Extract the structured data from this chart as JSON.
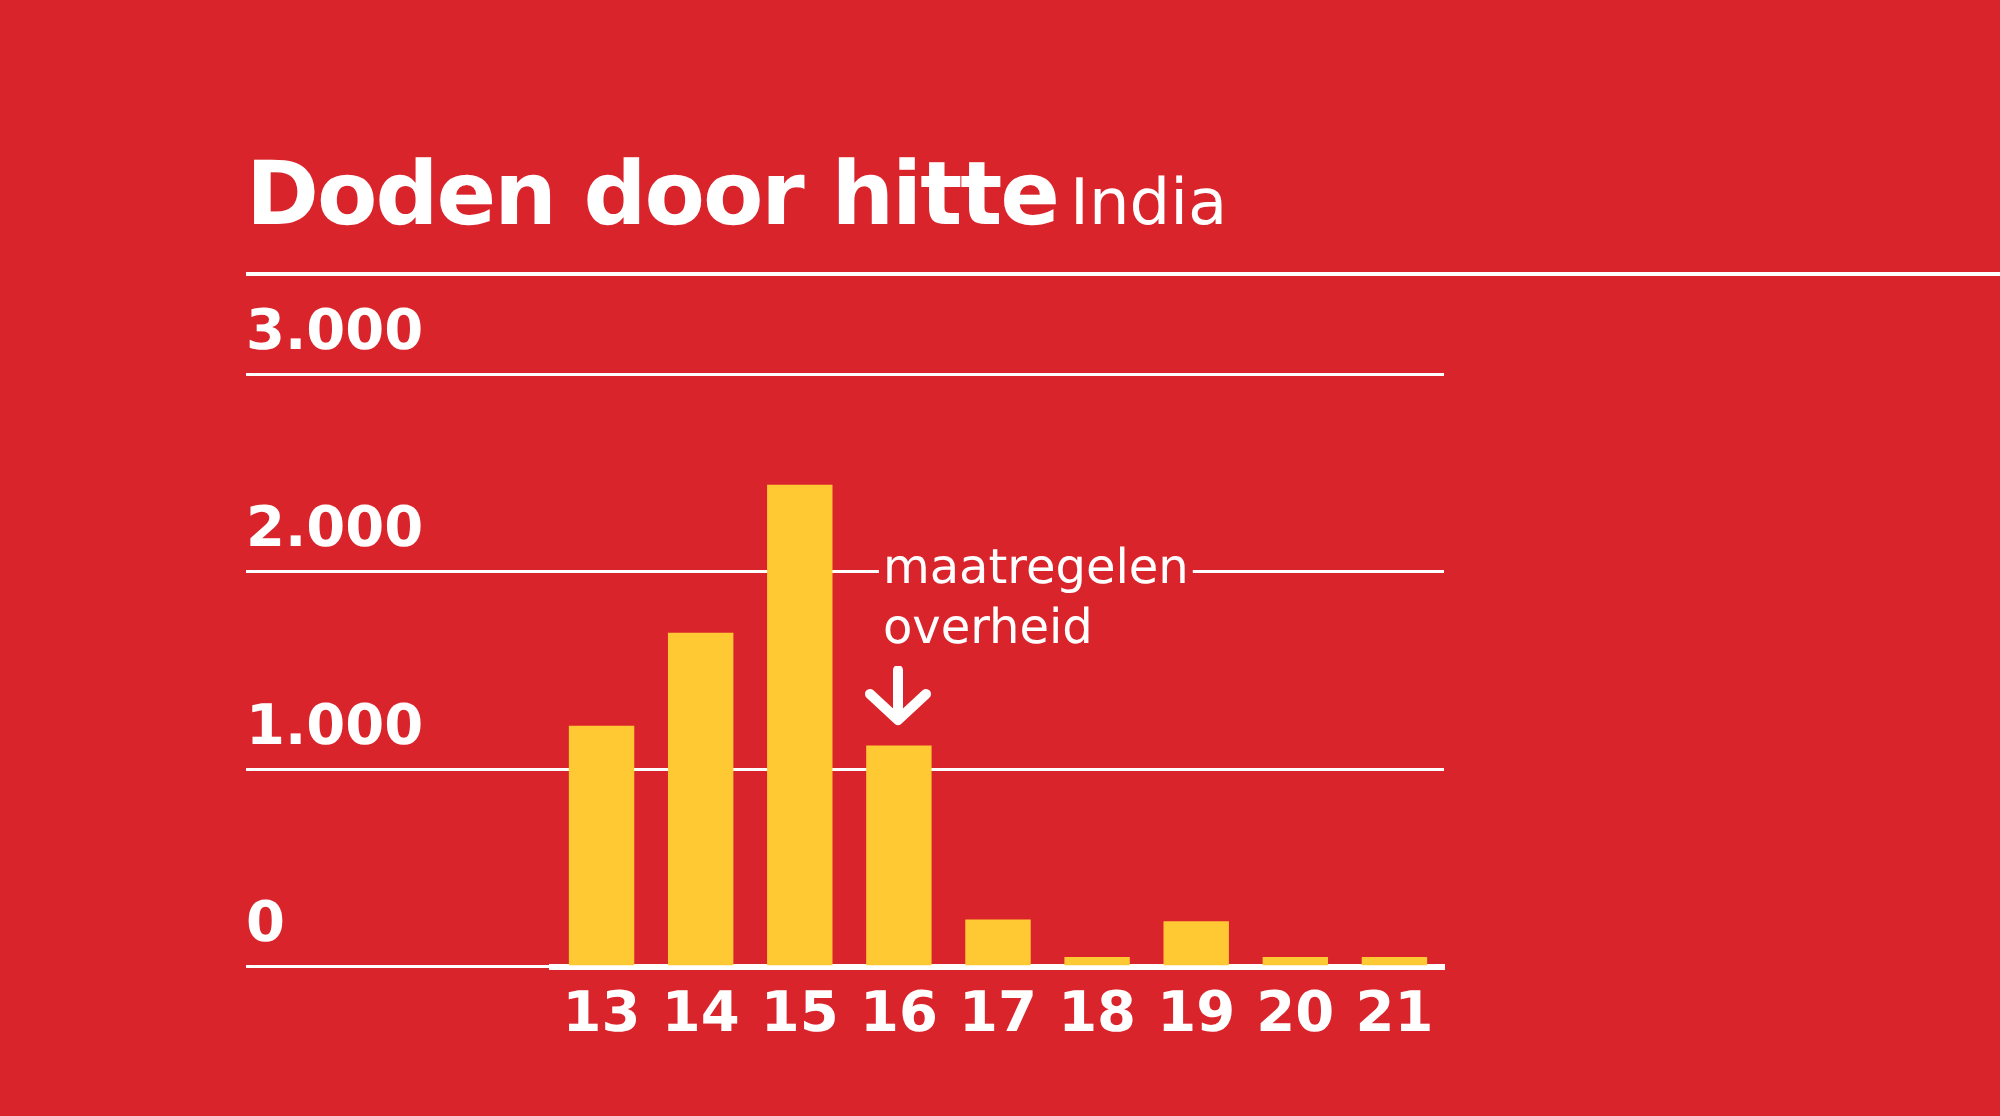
{
  "chart_data": {
    "type": "bar",
    "title": "Doden door hitte",
    "subtitle": "India",
    "categories": [
      "13",
      "14",
      "15",
      "16",
      "17",
      "18",
      "19",
      "20",
      "21"
    ],
    "values": [
      1220,
      1690,
      2440,
      1120,
      240,
      50,
      230,
      50,
      50
    ],
    "color": "#ffc933",
    "ylim": [
      0,
      3000
    ],
    "yticks": [
      {
        "value": 0,
        "label": "0"
      },
      {
        "value": 1000,
        "label": "1.000"
      },
      {
        "value": 2000,
        "label": "2.000"
      },
      {
        "value": 3000,
        "label": "3.000"
      }
    ],
    "grid": "y",
    "annotations": [
      {
        "text": "maatregelen overheid",
        "x": "16",
        "y": 1120
      }
    ]
  }
}
